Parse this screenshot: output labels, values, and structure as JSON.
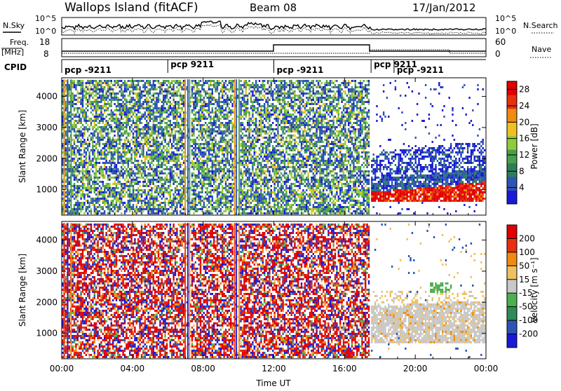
{
  "header": {
    "station": "Wallops Island (fitACF)",
    "beam": "Beam 08",
    "date": "17/Jan/2012"
  },
  "side_labels": {
    "nsky": "N.Sky",
    "nsearch": "N.Search",
    "freq_line1": "Freq.",
    "freq_line2": "[MHz]",
    "nave": "Nave",
    "cpid": "CPID"
  },
  "noise_panel": {
    "left_ticks": [
      "10^5",
      "10^0"
    ],
    "right_ticks": [
      "10^5",
      "10^0"
    ]
  },
  "freq_panel": {
    "left_ticks": [
      "18",
      "8"
    ],
    "right_ticks": [
      "60",
      "0"
    ]
  },
  "cpid_segments": [
    {
      "label": "pcp -9211",
      "start": 0.0
    },
    {
      "label": "pcp 9211",
      "start": 6.0
    },
    {
      "label": "pcp -9211",
      "start": 12.0
    },
    {
      "label": "pcp 9211",
      "start": 17.5
    },
    {
      "label": "pcp -9211",
      "start": 18.8
    }
  ],
  "chart_data": [
    {
      "type": "heatmap",
      "name": "power",
      "xlabel": "Time UT",
      "ylabel": "Slant Range [km]",
      "x_ticks": [
        "00:00",
        "04:00",
        "08:00",
        "12:00",
        "16:00",
        "20:00",
        "00:00"
      ],
      "x_tick_hours": [
        0,
        4,
        8,
        12,
        16,
        20,
        24
      ],
      "xlim": [
        0,
        24
      ],
      "y_ticks": [
        "1000",
        "2000",
        "3000",
        "4000"
      ],
      "y_tick_values": [
        1000,
        2000,
        3000,
        4000
      ],
      "ylim": [
        180,
        4600
      ],
      "colorbar": {
        "label": "Power [dB]",
        "ticks": [
          "4",
          "8",
          "12",
          "16",
          "20",
          "24",
          "28"
        ],
        "tick_values": [
          4,
          8,
          12,
          16,
          20,
          24,
          28
        ],
        "range": [
          0,
          30
        ],
        "colors": [
          "#1a1ad6",
          "#2b55b5",
          "#2e7d5a",
          "#4aa04a",
          "#8fcc3a",
          "#f0c020",
          "#f08a10",
          "#e83010",
          "#e00000"
        ]
      },
      "regions": [
        {
          "hours": [
            0,
            17.5
          ],
          "ranges": [
            180,
            4550
          ],
          "typical_power_db": "4-16",
          "pattern": "dense noise"
        },
        {
          "hours": [
            17.5,
            24
          ],
          "ranges": [
            600,
            1400
          ],
          "typical_power_db": "20-30",
          "pattern": "strong echoes"
        },
        {
          "hours": [
            17.5,
            24
          ],
          "ranges": [
            1400,
            2300
          ],
          "typical_power_db": "4-10",
          "pattern": "moderate echoes"
        }
      ]
    },
    {
      "type": "heatmap",
      "name": "velocity",
      "xlabel": "Time UT",
      "ylabel": "Slant Range [km]",
      "x_ticks": [
        "00:00",
        "04:00",
        "08:00",
        "12:00",
        "16:00",
        "20:00",
        "00:00"
      ],
      "x_tick_hours": [
        0,
        4,
        8,
        12,
        16,
        20,
        24
      ],
      "xlim": [
        0,
        24
      ],
      "y_ticks": [
        "1000",
        "2000",
        "3000",
        "4000"
      ],
      "y_tick_values": [
        1000,
        2000,
        3000,
        4000
      ],
      "ylim": [
        180,
        4600
      ],
      "colorbar": {
        "label": "Velocity [m s⁻¹]",
        "ticks": [
          "200",
          "100",
          "50",
          "15",
          "-15",
          "-50",
          "-100",
          "-200"
        ],
        "colors": [
          "#1a1ad6",
          "#2b55b5",
          "#2e8b57",
          "#4caf50",
          "#c8c8c8",
          "#f0c060",
          "#f08a10",
          "#e83010",
          "#e00000"
        ]
      },
      "regions": [
        {
          "hours": [
            0,
            17.5
          ],
          "ranges": [
            180,
            4550
          ],
          "typical_velocity": "mixed +/-200",
          "pattern": "dense noise"
        },
        {
          "hours": [
            17.5,
            24
          ],
          "ranges": [
            700,
            2000
          ],
          "typical_velocity": "-15 to 15",
          "pattern": "ground scatter"
        }
      ]
    }
  ]
}
